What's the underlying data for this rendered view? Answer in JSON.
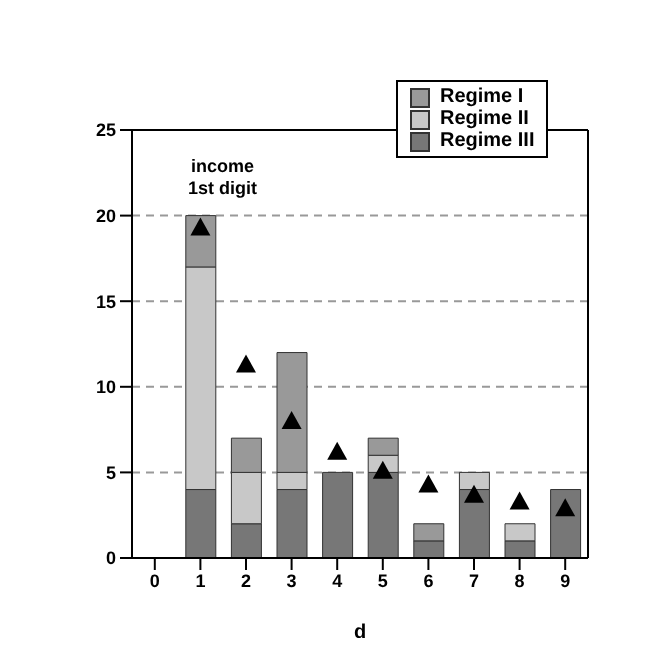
{
  "chart_data": {
    "type": "bar",
    "stacked": true,
    "categories": [
      "0",
      "1",
      "2",
      "3",
      "4",
      "5",
      "6",
      "7",
      "8",
      "9"
    ],
    "series": [
      {
        "name": "Regime III",
        "color": "#777777",
        "values": [
          0,
          4,
          2,
          4,
          5,
          5,
          1,
          4,
          1,
          4
        ]
      },
      {
        "name": "Regime II",
        "color": "#c8c8c8",
        "values": [
          0,
          13,
          3,
          1,
          0,
          1,
          0,
          1,
          1,
          0
        ]
      },
      {
        "name": "Regime I",
        "color": "#999999",
        "values": [
          0,
          3,
          2,
          7,
          0,
          1,
          1,
          0,
          0,
          0
        ]
      },
      {
        "type": "scatter",
        "color": "#000000",
        "marker": "triangle",
        "x": [
          "1",
          "2",
          "3",
          "4",
          "5",
          "6",
          "7",
          "8",
          "9"
        ],
        "values": [
          19.3,
          11.3,
          8.0,
          6.2,
          5.1,
          4.3,
          3.7,
          3.3,
          2.9
        ]
      }
    ],
    "xlabel": "d",
    "ylim": [
      0,
      25
    ],
    "yticks": [
      0,
      5,
      10,
      15,
      20,
      25
    ],
    "grid": "y",
    "legend": "top right",
    "annotations": [
      "income\n1st digit"
    ]
  }
}
